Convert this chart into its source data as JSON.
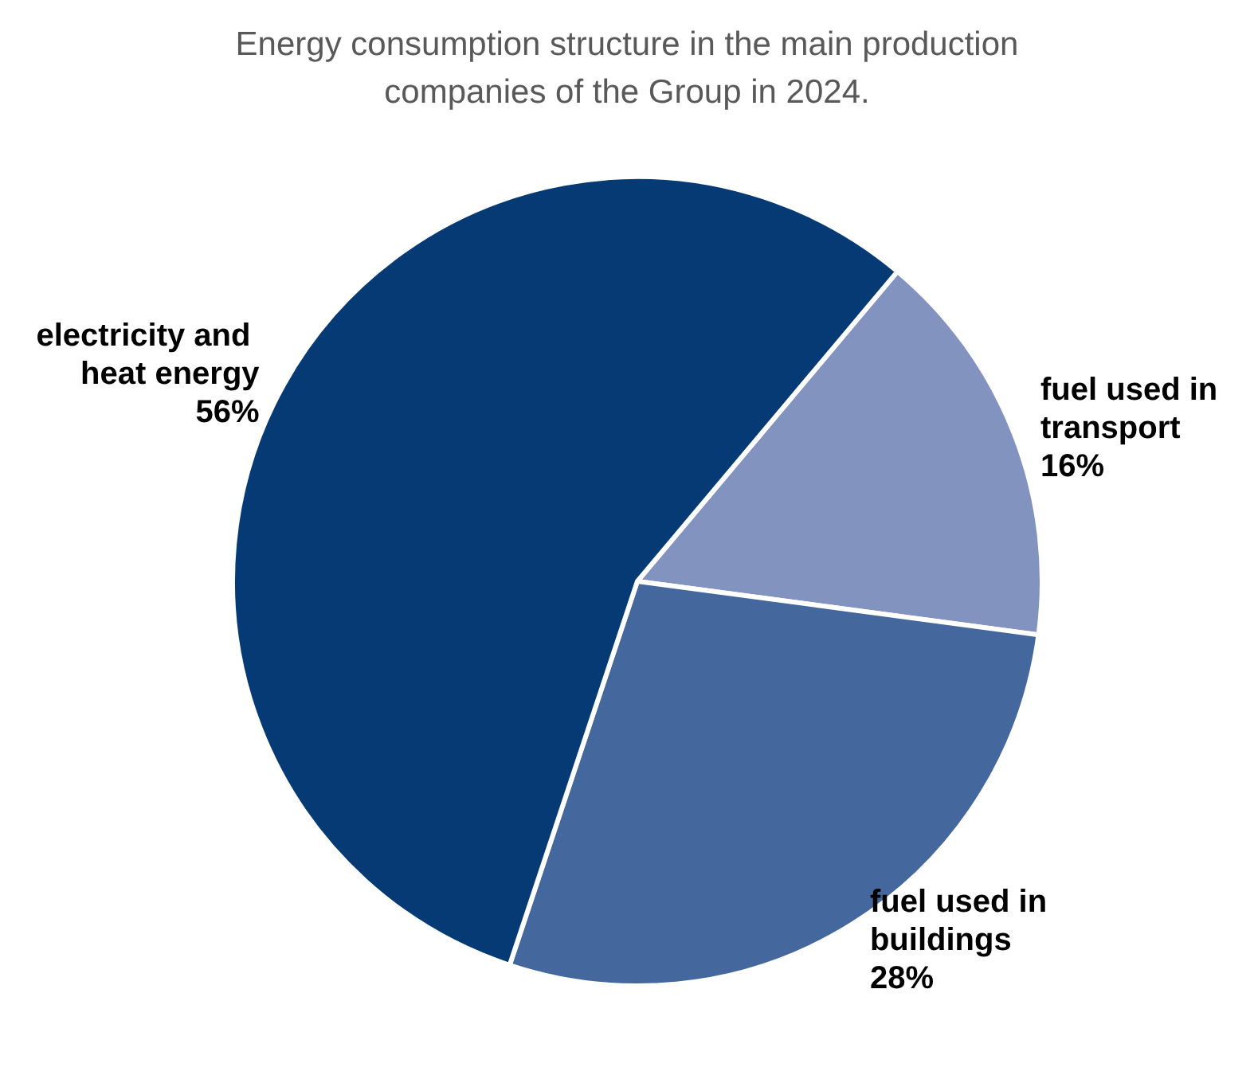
{
  "chart_data": {
    "type": "pie",
    "title": "Energy consumption structure in the main production\ncompanies of the Group in 2024.",
    "categories": [
      "fuel used in transport",
      "fuel used in buildings",
      "electricity and heat energy"
    ],
    "values": [
      16,
      28,
      56
    ],
    "colors": [
      "#8393bf",
      "#44679e",
      "#053a74"
    ],
    "value_labels": [
      "16%",
      "28%",
      "56%"
    ],
    "legend": false
  }
}
